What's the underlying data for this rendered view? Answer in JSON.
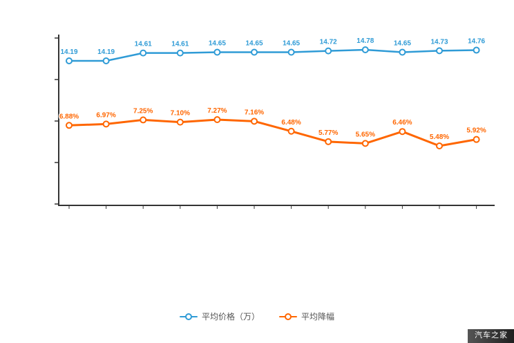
{
  "chart_data": {
    "type": "line",
    "title": "",
    "xlabel": "",
    "ylabel": "",
    "categories": [
      "",
      "",
      "",
      "",
      "",
      "",
      "",
      "",
      "",
      "",
      "",
      ""
    ],
    "x_tick_labels_visible": false,
    "y_tick_labels_visible": false,
    "grid": false,
    "legend_position": "bottom",
    "series": [
      {
        "name": "平均价格（万）",
        "color": "#2f9bd6",
        "unit": "",
        "values": [
          14.19,
          14.19,
          14.61,
          14.61,
          14.65,
          14.65,
          14.65,
          14.72,
          14.78,
          14.65,
          14.73,
          14.76
        ]
      },
      {
        "name": "平均降幅",
        "color": "#ff6600",
        "unit": "%",
        "values": [
          6.88,
          6.97,
          7.25,
          7.1,
          7.27,
          7.16,
          6.48,
          5.77,
          5.65,
          6.46,
          5.48,
          5.92
        ]
      }
    ]
  },
  "colors": {
    "axis": "#333333",
    "legend_text": "#555555",
    "watermark_bg": "#2a2a2a",
    "watermark_text": "#ffffff"
  },
  "watermark": "汽车之家"
}
